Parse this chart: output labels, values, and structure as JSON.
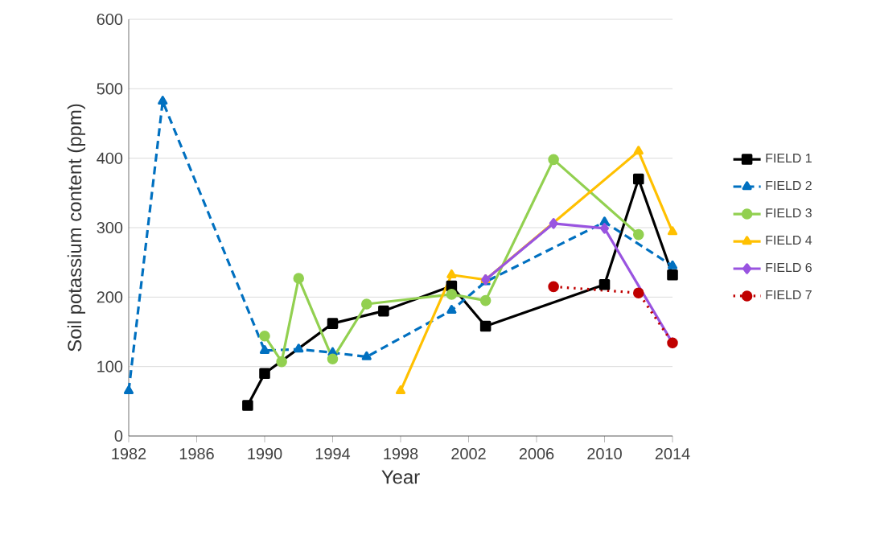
{
  "chart_data": {
    "type": "line",
    "xlabel": "Year",
    "ylabel": "Soil potassium content (ppm)",
    "xlim": [
      1982,
      2014
    ],
    "xticks": [
      1982,
      1986,
      1990,
      1994,
      1998,
      2002,
      2006,
      2010,
      2014
    ],
    "ylim": [
      0,
      600
    ],
    "yticks": [
      0,
      100,
      200,
      300,
      400,
      500,
      600
    ],
    "grid": "y",
    "legend": "right",
    "series": [
      {
        "name": "FIELD 1",
        "color": "#000000",
        "marker": "square",
        "line_style": "solid",
        "x": [
          1989,
          1990,
          1994,
          1997,
          2001,
          2003,
          2010,
          2012,
          2014
        ],
        "values": [
          44,
          90,
          162,
          180,
          216,
          158,
          218,
          370,
          232
        ]
      },
      {
        "name": "FIELD 2",
        "color": "#0070c0",
        "marker": "triangle",
        "line_style": "dashed",
        "x": [
          1982,
          1984,
          1990,
          1992,
          1994,
          1996,
          2001,
          2003,
          2010,
          2014
        ],
        "values": [
          65,
          482,
          123,
          125,
          120,
          114,
          181,
          222,
          308,
          245
        ]
      },
      {
        "name": "FIELD 3",
        "color": "#92d050",
        "marker": "circle",
        "line_style": "solid",
        "x": [
          1990,
          1991,
          1992,
          1994,
          1996,
          2001,
          2003,
          2007,
          2012
        ],
        "values": [
          144,
          107,
          227,
          111,
          190,
          204,
          195,
          398,
          290
        ]
      },
      {
        "name": "FIELD 4",
        "color": "#ffc000",
        "marker": "triangle",
        "line_style": "solid",
        "x": [
          1998,
          2001,
          2003,
          2012,
          2014
        ],
        "values": [
          65,
          232,
          225,
          410,
          294
        ]
      },
      {
        "name": "FIELD 6",
        "color": "#9954e0",
        "marker": "diamond",
        "line_style": "solid",
        "x": [
          2003,
          2007,
          2010,
          2014
        ],
        "values": [
          225,
          306,
          299,
          134
        ]
      },
      {
        "name": "FIELD 7",
        "color": "#c00000",
        "marker": "circle",
        "line_style": "dotted",
        "x": [
          2007,
          2012,
          2014
        ],
        "values": [
          215,
          206,
          134
        ]
      }
    ]
  }
}
